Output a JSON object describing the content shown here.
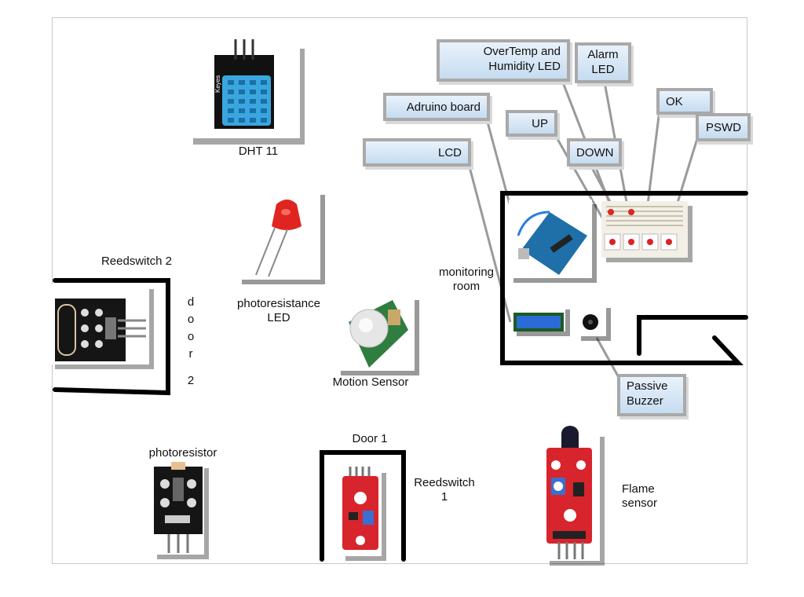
{
  "labels": {
    "dht11": "DHT 11",
    "photoresistance_led": [
      "photoresistance",
      "LED"
    ],
    "motion_sensor": "Motion Sensor",
    "reedswitch2": "Reedswitch 2",
    "door2_vertical": [
      "d",
      "o",
      "o",
      "r",
      "2"
    ],
    "monitoring_room": [
      "monitoring",
      "room"
    ],
    "photoresistor": "photoresistor",
    "door1": "Door 1",
    "reedswitch1": [
      "Reedswitch",
      "1"
    ],
    "flame_sensor": [
      "Flame",
      "sensor"
    ],
    "keyes": "Keyes"
  },
  "callouts": {
    "overtemp": [
      "OverTemp and",
      "Humidity LED"
    ],
    "alarm": [
      "Alarm",
      "LED"
    ],
    "arduino": "Adruino board",
    "up": "UP",
    "ok": "OK",
    "pswd": "PSWD",
    "down": "DOWN",
    "lcd": "LCD",
    "buzzer": [
      "Passive",
      "Buzzer"
    ]
  },
  "colors": {
    "callout_fill": "#d6e6f5",
    "callout_border": "#a9a9a9",
    "wall": "#000000",
    "module_board": "#1a1a1a",
    "flame_board": "#d8242c",
    "dht_sensor": "#3aa6e0",
    "arduino": "#1f6fa8",
    "lcd": "#2a6bd6"
  }
}
